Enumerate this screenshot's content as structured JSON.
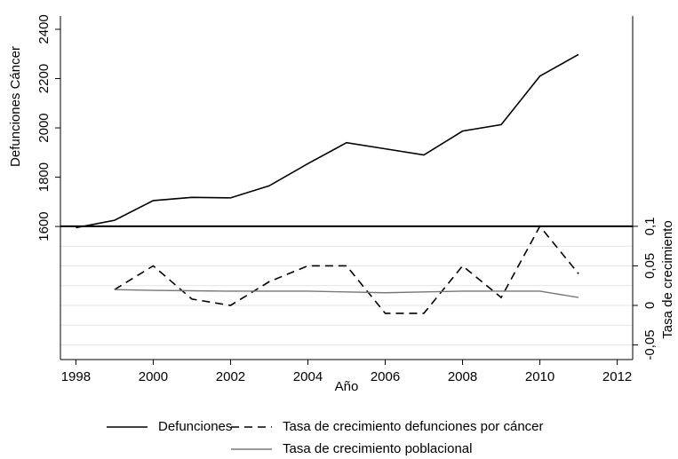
{
  "chart_data": {
    "type": "line",
    "x_label": "Año",
    "y_label": "Defunciones Cáncer",
    "y2_label": "Tasa de crecimiento",
    "x": [
      1998,
      1999,
      2000,
      2001,
      2002,
      2003,
      2004,
      2005,
      2006,
      2007,
      2008,
      2009,
      2010,
      2011
    ],
    "xlim": [
      1997.6,
      2012.4
    ],
    "xticks": [
      1998,
      2000,
      2002,
      2004,
      2006,
      2008,
      2010,
      2012
    ],
    "ylim": [
      1060,
      2454
    ],
    "yticks": [
      1600,
      1800,
      2000,
      2200,
      2400
    ],
    "y2lim": [
      -0.0685,
      0.366
    ],
    "y2ticks": [
      {
        "value": 0.1,
        "label": "0,1"
      },
      {
        "value": 0.05,
        "label": "0,05"
      },
      0,
      {
        "value": -0.05,
        "label": "-0,05"
      }
    ],
    "y2grid": [
      0.075,
      0.05,
      0.025,
      0,
      -0.025,
      -0.05
    ],
    "y2_refline": 0.1,
    "series": [
      {
        "name": "Defunciones",
        "color": "#000000",
        "dash": "solid",
        "axis": "y",
        "values": [
          1595,
          1625,
          1705,
          1718,
          1716,
          1765,
          1855,
          1940,
          1915,
          1890,
          1987,
          2013,
          2210,
          2298
        ]
      },
      {
        "name": "Tasa de crecimiento defunciones por cáncer",
        "color": "#000000",
        "dash": "dashed",
        "axis": "y2",
        "values": [
          null,
          0.02,
          0.05,
          0.008,
          0,
          0.03,
          0.05,
          0.05,
          -0.01,
          -0.01,
          0.05,
          0.01,
          0.1,
          0.04
        ]
      },
      {
        "name": "Tasa de crecimiento poblacional",
        "color": "#777777",
        "dash": "solid",
        "axis": "y2",
        "values": [
          null,
          0.02,
          0.019,
          0.0185,
          0.018,
          0.018,
          0.018,
          0.017,
          0.016,
          0.017,
          0.018,
          0.018,
          0.018,
          0.01
        ]
      }
    ]
  }
}
